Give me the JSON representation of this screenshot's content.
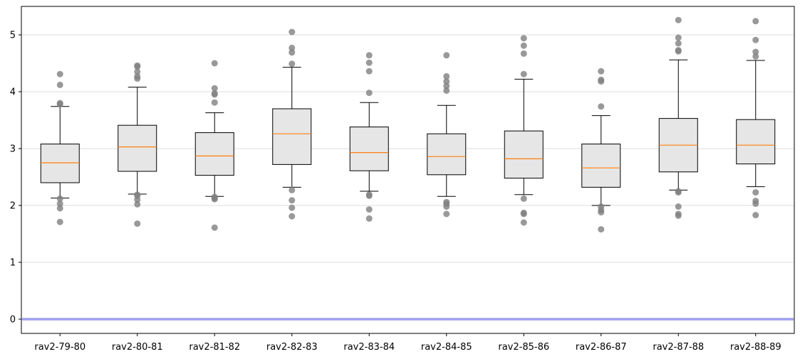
{
  "chart_data": {
    "type": "box",
    "title": "",
    "xlabel": "",
    "ylabel": "",
    "ylim": [
      -0.25,
      5.5
    ],
    "yticks": [
      0,
      1,
      2,
      3,
      4,
      5
    ],
    "grid": "horizontal",
    "reference_line": {
      "y": 0,
      "color": "#a0a0f0"
    },
    "colors": {
      "box_fill": "#e6e6e6",
      "median": "#ff7f0e",
      "outlier": "#808080"
    },
    "categories": [
      "rav2-79-80",
      "rav2-80-81",
      "rav2-81-82",
      "rav2-82-83",
      "rav2-83-84",
      "rav2-84-85",
      "rav2-85-86",
      "rav2-86-87",
      "rav2-87-88",
      "rav2-88-89"
    ],
    "boxes": [
      {
        "whisker_low": 2.13,
        "q1": 2.4,
        "median": 2.75,
        "q3": 3.08,
        "whisker_high": 3.74,
        "outliers": [
          1.71,
          1.95,
          2.03,
          2.12,
          3.78,
          3.8,
          4.12,
          4.31
        ]
      },
      {
        "whisker_low": 2.2,
        "q1": 2.6,
        "median": 3.03,
        "q3": 3.41,
        "whisker_high": 4.08,
        "outliers": [
          1.68,
          2.02,
          2.1,
          2.17,
          2.19,
          4.23,
          4.27,
          4.35,
          4.44,
          4.46
        ]
      },
      {
        "whisker_low": 2.16,
        "q1": 2.53,
        "median": 2.87,
        "q3": 3.28,
        "whisker_high": 3.63,
        "outliers": [
          1.61,
          2.11,
          2.13,
          2.15,
          3.81,
          3.95,
          3.97,
          4.06,
          4.5
        ]
      },
      {
        "whisker_low": 2.32,
        "q1": 2.72,
        "median": 3.26,
        "q3": 3.7,
        "whisker_high": 4.43,
        "outliers": [
          1.81,
          1.96,
          2.09,
          2.27,
          4.49,
          4.69,
          4.77,
          5.05
        ]
      },
      {
        "whisker_low": 2.25,
        "q1": 2.61,
        "median": 2.93,
        "q3": 3.38,
        "whisker_high": 3.81,
        "outliers": [
          1.77,
          1.93,
          2.17,
          2.19,
          3.98,
          4.36,
          4.51,
          4.64
        ]
      },
      {
        "whisker_low": 2.16,
        "q1": 2.54,
        "median": 2.86,
        "q3": 3.26,
        "whisker_high": 3.76,
        "outliers": [
          1.85,
          1.98,
          2.03,
          2.06,
          4.02,
          4.1,
          4.18,
          4.27,
          4.64
        ]
      },
      {
        "whisker_low": 2.19,
        "q1": 2.48,
        "median": 2.82,
        "q3": 3.31,
        "whisker_high": 4.22,
        "outliers": [
          1.7,
          1.85,
          1.87,
          2.12,
          4.31,
          4.67,
          4.81,
          4.94
        ]
      },
      {
        "whisker_low": 2.0,
        "q1": 2.32,
        "median": 2.66,
        "q3": 3.08,
        "whisker_high": 3.58,
        "outliers": [
          1.58,
          1.88,
          1.92,
          1.98,
          3.74,
          4.18,
          4.21,
          4.36
        ]
      },
      {
        "whisker_low": 2.27,
        "q1": 2.59,
        "median": 3.06,
        "q3": 3.53,
        "whisker_high": 4.56,
        "outliers": [
          1.82,
          1.85,
          1.98,
          2.23,
          2.25,
          4.71,
          4.73,
          4.85,
          4.95,
          5.26
        ]
      },
      {
        "whisker_low": 2.33,
        "q1": 2.73,
        "median": 3.06,
        "q3": 3.51,
        "whisker_high": 4.55,
        "outliers": [
          1.83,
          2.03,
          2.08,
          2.23,
          4.62,
          4.7,
          4.91,
          5.24
        ]
      }
    ]
  }
}
